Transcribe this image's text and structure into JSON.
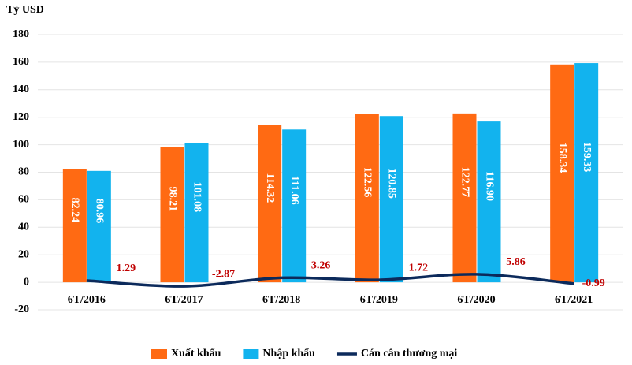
{
  "chart_data": {
    "type": "bar",
    "y_axis_label": "Tỷ USD",
    "categories": [
      "6T/2016",
      "6T/2017",
      "6T/2018",
      "6T/2019",
      "6T/2020",
      "6T/2021"
    ],
    "series": [
      {
        "name": "Xuất khẩu",
        "type": "bar",
        "color": "#ff6a13",
        "values": [
          82.24,
          98.21,
          114.32,
          122.56,
          122.77,
          158.34
        ]
      },
      {
        "name": "Nhập khẩu",
        "type": "bar",
        "color": "#12b3ee",
        "values": [
          80.96,
          101.08,
          111.06,
          120.85,
          116.9,
          159.33
        ],
        "value_labels": [
          "80.96",
          "101.08",
          "111.06",
          "120.85",
          "116.90",
          "159.33"
        ]
      },
      {
        "name": "Cán cân thương mại",
        "type": "line",
        "color": "#0c2a5b",
        "values": [
          1.29,
          -2.87,
          3.26,
          1.72,
          5.86,
          -0.99
        ]
      }
    ],
    "ylim": [
      -20,
      180
    ],
    "yticks": [
      -20,
      0,
      20,
      40,
      60,
      80,
      100,
      120,
      140,
      160,
      180
    ],
    "grid": true,
    "legend": "bottom"
  }
}
